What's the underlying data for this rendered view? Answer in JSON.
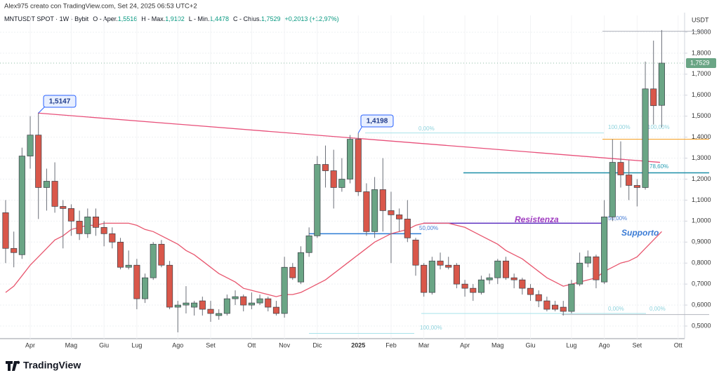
{
  "chart_data": {
    "type": "candlestick",
    "title": "Alex975 creato con TradingView.com, Set 24, 2025 06:53 UTC+2",
    "symbol": "MNTUSDT SPOT · 1W · Bybit",
    "ohlc_legend": [
      {
        "label": "O - Aper.",
        "value": "1,5516"
      },
      {
        "label": "H - Max.",
        "value": "1,9102"
      },
      {
        "label": "L - Min.",
        "value": "1,4478"
      },
      {
        "label": "C - Chius.",
        "value": "1,7529"
      }
    ],
    "change": "+0,2013 (+12,97%)",
    "y_unit": "USDT",
    "last_price_label": "1,7529",
    "brand": "TradingView",
    "up_color": "#6aa585",
    "down_color": "#d9574a",
    "categories": [
      null,
      null,
      null,
      "Apr",
      null,
      null,
      null,
      null,
      "Mag",
      null,
      null,
      null,
      "Giu",
      null,
      null,
      null,
      "Lug",
      null,
      null,
      null,
      null,
      "Ago",
      null,
      null,
      null,
      "Set",
      null,
      null,
      null,
      null,
      "Ott",
      null,
      null,
      null,
      "Nov",
      null,
      null,
      null,
      "Dic",
      null,
      null,
      null,
      null,
      "2025",
      null,
      null,
      null,
      "Feb",
      null,
      null,
      null,
      "Mar",
      null,
      null,
      null,
      null,
      "Apr",
      null,
      null,
      null,
      "Mag",
      null,
      null,
      null,
      "Giu",
      null,
      null,
      null,
      null,
      "Lug",
      null,
      null,
      null,
      "Ago",
      null,
      null,
      null,
      "Set",
      null,
      null,
      null,
      null,
      "Ott"
    ],
    "open": [
      1.04,
      0.87,
      0.84,
      1.31,
      1.41,
      1.16,
      1.19,
      1.07,
      1.06,
      1.0,
      0.94,
      1.02,
      0.97,
      0.94,
      0.9,
      0.78,
      0.79,
      0.63,
      0.73,
      0.89,
      0.79,
      0.59,
      0.6,
      0.59,
      0.62,
      0.58,
      0.55,
      0.56,
      0.63,
      0.64,
      0.6,
      0.61,
      0.63,
      0.59,
      0.56,
      0.78,
      0.71,
      0.85,
      0.93,
      1.27,
      1.24,
      1.16,
      1.2,
      1.39,
      1.14,
      0.95,
      1.15,
      1.05,
      1.03,
      1.01,
      0.91,
      0.79,
      0.66,
      0.81,
      0.79,
      0.79,
      0.7,
      0.68,
      0.66,
      0.72,
      0.73,
      0.81,
      0.73,
      0.72,
      0.68,
      0.65,
      0.62,
      0.6,
      0.59,
      0.57,
      0.7,
      0.8,
      0.83,
      0.71,
      1.02,
      1.28,
      1.22,
      1.17,
      1.16,
      1.63,
      1.5516,
      null,
      null
    ],
    "high": [
      1.1,
      0.95,
      1.35,
      1.5,
      1.5147,
      1.25,
      1.28,
      1.1,
      1.08,
      1.05,
      1.06,
      1.06,
      1.0,
      0.97,
      0.92,
      0.86,
      0.82,
      0.75,
      0.9,
      0.91,
      0.81,
      0.62,
      0.69,
      0.62,
      0.64,
      0.62,
      0.58,
      0.65,
      0.67,
      0.65,
      0.66,
      0.65,
      0.64,
      0.62,
      0.83,
      0.8,
      0.88,
      0.97,
      1.31,
      1.36,
      1.34,
      1.3,
      1.41,
      1.4198,
      1.18,
      1.21,
      1.3,
      1.14,
      1.06,
      1.1,
      0.92,
      0.8,
      0.83,
      0.85,
      0.83,
      0.8,
      0.72,
      0.7,
      0.74,
      0.75,
      0.82,
      0.83,
      0.75,
      0.73,
      0.7,
      0.67,
      0.64,
      0.62,
      0.62,
      0.72,
      0.85,
      0.86,
      0.84,
      1.1,
      1.39,
      1.38,
      1.29,
      1.2,
      1.76,
      1.86,
      1.9102,
      null,
      null
    ],
    "low": [
      0.8,
      0.78,
      0.82,
      1.25,
      1.01,
      1.05,
      1.04,
      0.87,
      0.93,
      0.91,
      0.92,
      0.93,
      0.88,
      0.87,
      0.77,
      0.77,
      0.58,
      0.61,
      0.72,
      0.78,
      0.58,
      0.47,
      0.56,
      0.55,
      0.55,
      0.52,
      0.53,
      0.55,
      0.6,
      0.57,
      0.58,
      0.6,
      0.57,
      0.55,
      0.54,
      0.72,
      0.7,
      0.83,
      0.92,
      1.16,
      1.06,
      1.14,
      1.18,
      1.12,
      0.93,
      0.92,
      0.95,
      0.8,
      0.95,
      0.9,
      0.74,
      0.64,
      0.65,
      0.77,
      0.77,
      0.68,
      0.64,
      0.62,
      0.65,
      0.7,
      0.7,
      0.72,
      0.68,
      0.65,
      0.62,
      0.59,
      0.57,
      0.57,
      0.55,
      0.56,
      0.69,
      0.78,
      0.68,
      0.7,
      1.0,
      1.16,
      1.1,
      1.07,
      1.15,
      1.46,
      1.4478,
      null,
      null
    ],
    "close": [
      0.87,
      0.85,
      1.31,
      1.41,
      1.16,
      1.19,
      1.07,
      1.06,
      1.0,
      0.94,
      1.02,
      0.97,
      0.94,
      0.9,
      0.78,
      0.79,
      0.63,
      0.73,
      0.89,
      0.79,
      0.59,
      0.6,
      0.61,
      0.61,
      0.58,
      0.56,
      0.56,
      0.63,
      0.64,
      0.6,
      0.61,
      0.63,
      0.59,
      0.56,
      0.78,
      0.73,
      0.85,
      0.93,
      1.27,
      1.24,
      1.16,
      1.2,
      1.39,
      1.14,
      0.95,
      1.15,
      1.05,
      1.03,
      1.01,
      0.92,
      0.79,
      0.66,
      0.81,
      0.79,
      0.78,
      0.7,
      0.68,
      0.66,
      0.72,
      0.73,
      0.81,
      0.73,
      0.72,
      0.68,
      0.65,
      0.62,
      0.58,
      0.58,
      0.57,
      0.7,
      0.8,
      0.83,
      0.72,
      1.02,
      1.28,
      1.22,
      1.17,
      1.16,
      1.63,
      1.55,
      1.7529,
      null,
      null
    ],
    "ma": {
      "color": "#e8566e",
      "values": [
        0.66,
        0.69,
        0.74,
        0.79,
        0.83,
        0.87,
        0.91,
        0.93,
        0.96,
        0.97,
        0.98,
        0.98,
        0.99,
        0.99,
        0.99,
        0.99,
        0.98,
        0.96,
        0.95,
        0.93,
        0.91,
        0.89,
        0.86,
        0.84,
        0.81,
        0.78,
        0.75,
        0.73,
        0.71,
        0.68,
        0.67,
        0.66,
        0.65,
        0.64,
        0.65,
        0.65,
        0.66,
        0.68,
        0.7,
        0.72,
        0.75,
        0.78,
        0.81,
        0.84,
        0.87,
        0.9,
        0.92,
        0.94,
        0.95,
        0.96,
        0.98,
        0.99,
        0.99,
        0.99,
        0.99,
        0.98,
        0.97,
        0.95,
        0.93,
        0.91,
        0.89,
        0.86,
        0.84,
        0.82,
        0.79,
        0.76,
        0.73,
        0.71,
        0.69,
        0.7,
        0.71,
        0.72,
        0.73,
        0.76,
        0.78,
        0.8,
        0.81,
        0.83,
        0.87,
        0.91,
        0.95,
        null,
        null
      ]
    },
    "trendline": {
      "color": "#e8507a",
      "values": [
        1.5147,
        1.28
      ]
    },
    "callouts": [
      {
        "value": 1.5147,
        "label": "1,5147"
      },
      {
        "value": 1.4198,
        "label": "1,4198"
      }
    ],
    "levels": [
      {
        "value": 1.905,
        "color": "#b2b5be"
      },
      {
        "value": 1.39,
        "color": "#f59c1a"
      },
      {
        "value": 1.23,
        "color": "#1e8fa8"
      },
      {
        "value": 0.99,
        "color": "#5b2fbf"
      },
      {
        "value": 0.94,
        "color": "#2b7bd4"
      },
      {
        "value": 0.555,
        "color": "#b2b5be"
      },
      {
        "value": 1.42,
        "color": "#a8e3ea"
      },
      {
        "value": 0.465,
        "color": "#a8e3ea"
      },
      {
        "value": 0.56,
        "color": "#a8e3ea"
      }
    ],
    "fib_labels": [
      "0,00%",
      "100,00%",
      "50,00%",
      "100,00%",
      "100,00%",
      "50,00%",
      "78,60%",
      "0,00%",
      "0,00%"
    ],
    "notes": [
      "Resistenza",
      "Supporto"
    ],
    "ylim": [
      0.44,
      1.98
    ],
    "yticks": [
      {
        "value": 0.5,
        "label": "0,5000"
      },
      {
        "value": 0.6,
        "label": "0,6000"
      },
      {
        "value": 0.7,
        "label": "0,7000"
      },
      {
        "value": 0.8,
        "label": "0,8000"
      },
      {
        "value": 0.9,
        "label": "0,9000"
      },
      {
        "value": 1.0,
        "label": "1,0000"
      },
      {
        "value": 1.1,
        "label": "1,1000"
      },
      {
        "value": 1.2,
        "label": "1,2000"
      },
      {
        "value": 1.3,
        "label": "1,3000"
      },
      {
        "value": 1.4,
        "label": "1,4000"
      },
      {
        "value": 1.5,
        "label": "1,5000"
      },
      {
        "value": 1.6,
        "label": "1,6000"
      },
      {
        "value": 1.7,
        "label": "1,7000"
      },
      {
        "value": 1.8,
        "label": "1,8000"
      },
      {
        "value": 1.9,
        "label": "1,9000"
      }
    ],
    "grid": true
  }
}
